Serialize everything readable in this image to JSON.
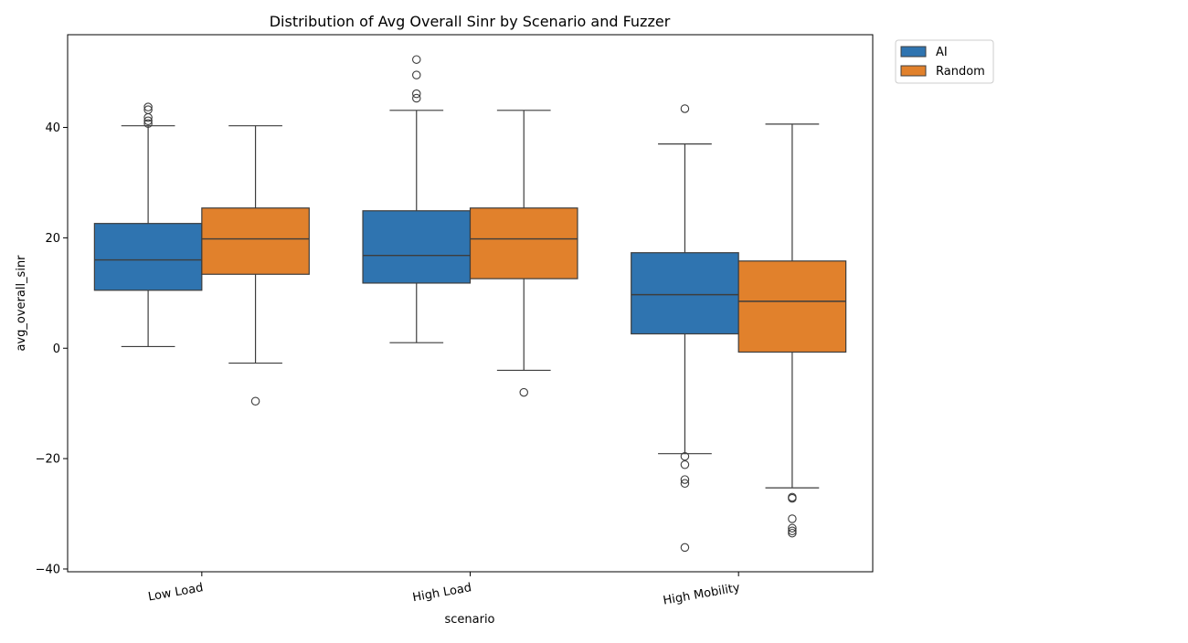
{
  "chart_data": {
    "type": "box",
    "title": "Distribution of Avg Overall Sinr by Scenario and Fuzzer",
    "xlabel": "scenario",
    "ylabel": "avg_overall_sinr",
    "categories": [
      "Low Load",
      "High Load",
      "High Mobility"
    ],
    "ylim": [
      -40.5,
      56.8
    ],
    "yticks": [
      -40,
      -20,
      0,
      20,
      40
    ],
    "grid": false,
    "legend_position": "top-right, outside plot",
    "series": [
      {
        "name": "AI",
        "color": "#2f74b0",
        "boxes": [
          {
            "whisker_low": 0.3,
            "q1": 10.5,
            "median": 16.0,
            "q3": 22.6,
            "whisker_high": 40.3,
            "outliers": [
              40.7,
              41.2,
              41.8,
              43.2,
              43.7
            ]
          },
          {
            "whisker_low": 1.0,
            "q1": 11.8,
            "median": 16.8,
            "q3": 24.9,
            "whisker_high": 43.1,
            "outliers": [
              45.3,
              46.1,
              49.5,
              52.3
            ]
          },
          {
            "whisker_low": -19.1,
            "q1": 2.6,
            "median": 9.7,
            "q3": 17.3,
            "whisker_high": 37.0,
            "outliers": [
              43.4,
              -19.6,
              -21.1,
              -23.8,
              -24.5,
              -36.1
            ]
          }
        ]
      },
      {
        "name": "Random",
        "color": "#e1812c",
        "boxes": [
          {
            "whisker_low": -2.7,
            "q1": 13.4,
            "median": 19.8,
            "q3": 25.4,
            "whisker_high": 40.3,
            "outliers": [
              -9.6
            ]
          },
          {
            "whisker_low": -4.0,
            "q1": 12.6,
            "median": 19.8,
            "q3": 25.4,
            "whisker_high": 43.1,
            "outliers": [
              -8.0
            ]
          },
          {
            "whisker_low": -25.3,
            "q1": -0.7,
            "median": 8.5,
            "q3": 15.8,
            "whisker_high": 40.6,
            "outliers": [
              -27.0,
              -27.2,
              -30.9,
              -32.6,
              -33.1,
              -33.5
            ]
          }
        ]
      }
    ]
  }
}
